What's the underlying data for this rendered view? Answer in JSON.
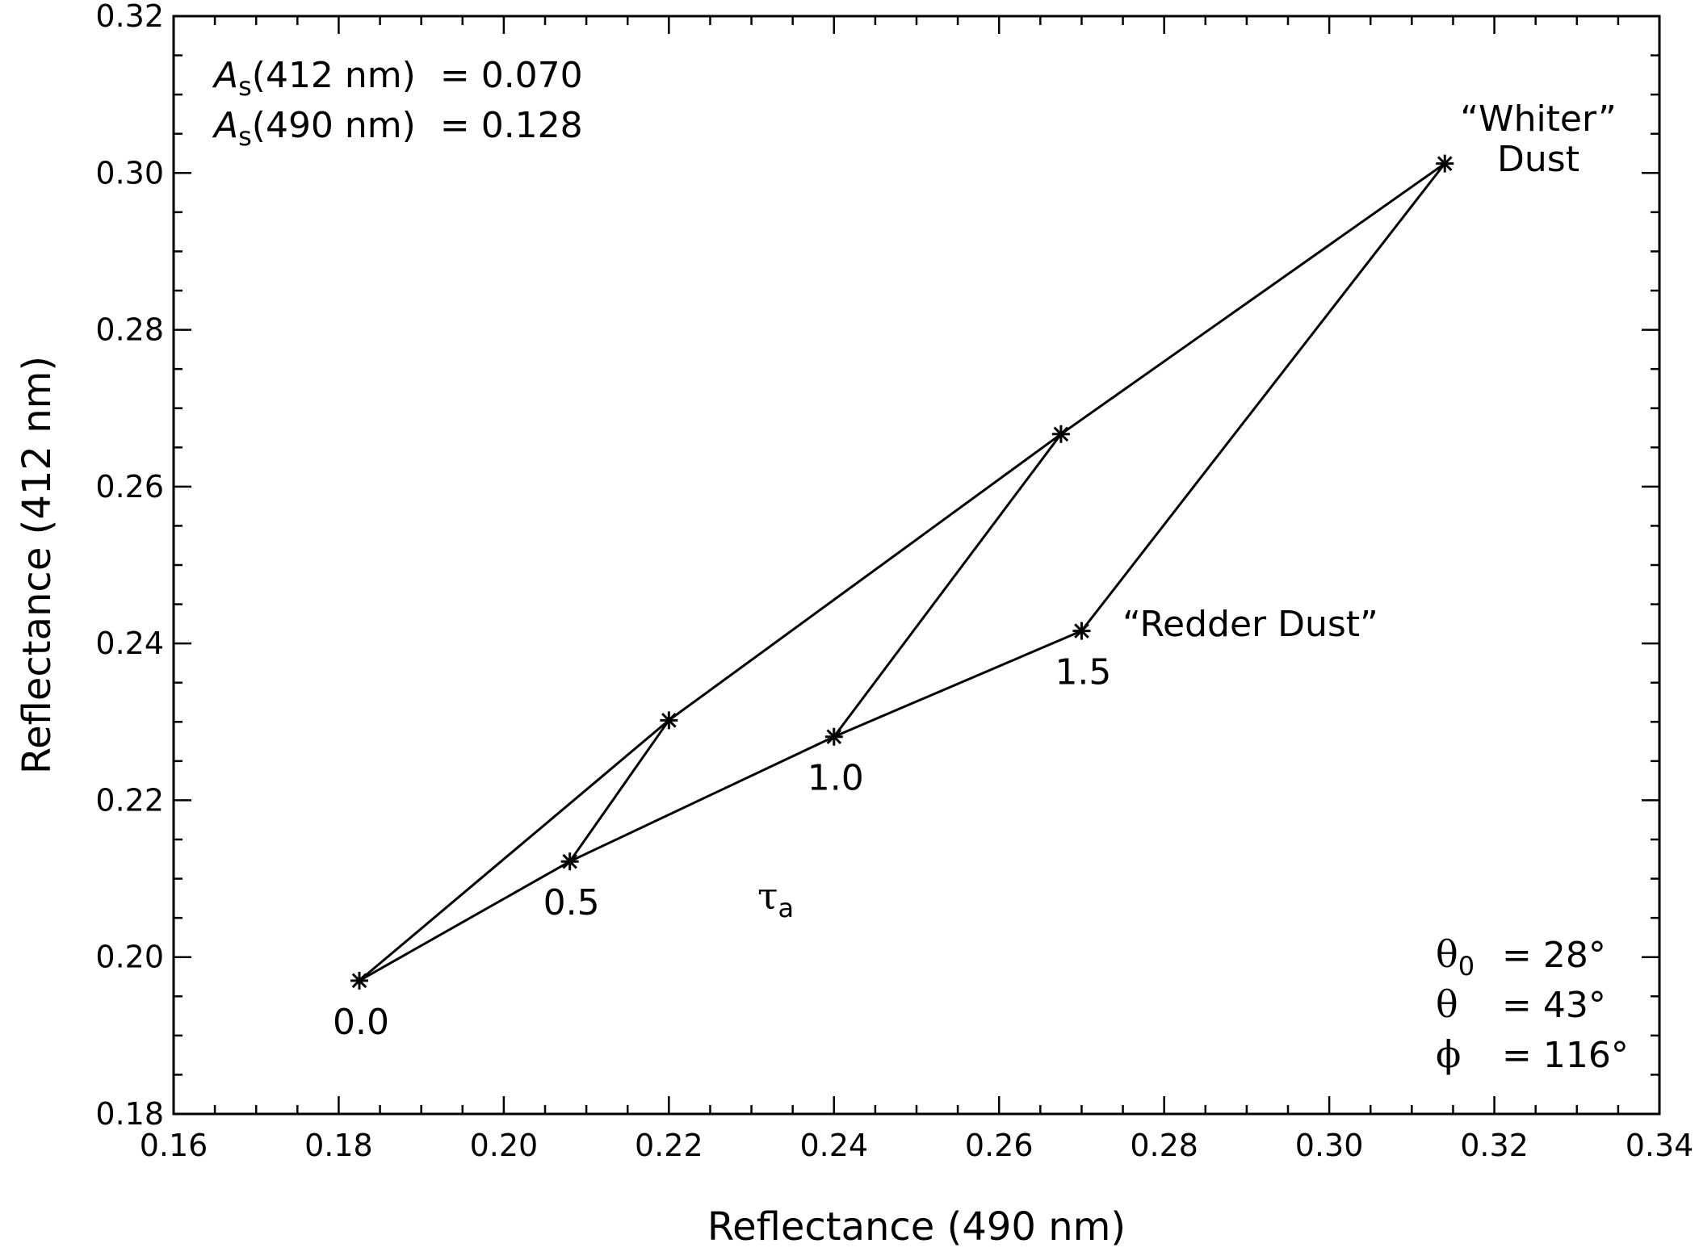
{
  "chart_data": {
    "type": "line",
    "xlabel": "Reflectance (490 nm)",
    "ylabel": "Reflectance (412 nm)",
    "xlim": [
      0.16,
      0.34
    ],
    "ylim": [
      0.18,
      0.32
    ],
    "x_ticks": [
      "0.16",
      "0.18",
      "0.20",
      "0.22",
      "0.24",
      "0.26",
      "0.28",
      "0.30",
      "0.32",
      "0.34"
    ],
    "y_ticks": [
      "0.18",
      "0.20",
      "0.22",
      "0.24",
      "0.26",
      "0.28",
      "0.30",
      "0.32"
    ],
    "grid": false,
    "series": [
      {
        "label": "“Whiter” Dust",
        "points": [
          {
            "x": 0.1825,
            "y": 0.197
          },
          {
            "x": 0.22,
            "y": 0.2302
          },
          {
            "x": 0.2675,
            "y": 0.2667
          },
          {
            "x": 0.314,
            "y": 0.3012
          }
        ]
      },
      {
        "label": "“Redder Dust”",
        "points": [
          {
            "x": 0.1825,
            "y": 0.197
          },
          {
            "x": 0.208,
            "y": 0.2122
          },
          {
            "x": 0.24,
            "y": 0.2281
          },
          {
            "x": 0.27,
            "y": 0.2416
          }
        ]
      },
      {
        "label": "",
        "points": [
          {
            "x": 0.208,
            "y": 0.2122
          },
          {
            "x": 0.22,
            "y": 0.2302
          }
        ]
      },
      {
        "label": "",
        "points": [
          {
            "x": 0.24,
            "y": 0.2281
          },
          {
            "x": 0.2675,
            "y": 0.2667
          }
        ]
      },
      {
        "label": "",
        "points": [
          {
            "x": 0.27,
            "y": 0.2416
          },
          {
            "x": 0.314,
            "y": 0.3012
          }
        ]
      }
    ],
    "tau_labels": [
      {
        "text": "0.0",
        "x": 0.1825,
        "y": 0.197
      },
      {
        "text": "0.5",
        "x": 0.208,
        "y": 0.2122
      },
      {
        "text": "1.0",
        "x": 0.24,
        "y": 0.2281
      },
      {
        "text": "1.5",
        "x": 0.27,
        "y": 0.2416
      }
    ],
    "annotations": {
      "tau_symbol": "τ",
      "tau_subscript": "a",
      "whiter_line1": "“Whiter”",
      "whiter_line2": "Dust",
      "redder": "“Redder Dust”",
      "as_symbol": "A",
      "as_subscript": "s",
      "as1_paren": "(412 nm)",
      "as1_value": "= 0.070",
      "as2_paren": "(490 nm)",
      "as2_value": "= 0.128",
      "theta0_symbol": "θ",
      "theta0_subscript": "0",
      "theta0_value": "= 28°",
      "theta_symbol": "θ",
      "theta_value": "= 43°",
      "phi_symbol": "ϕ",
      "phi_value": "= 116°"
    }
  }
}
